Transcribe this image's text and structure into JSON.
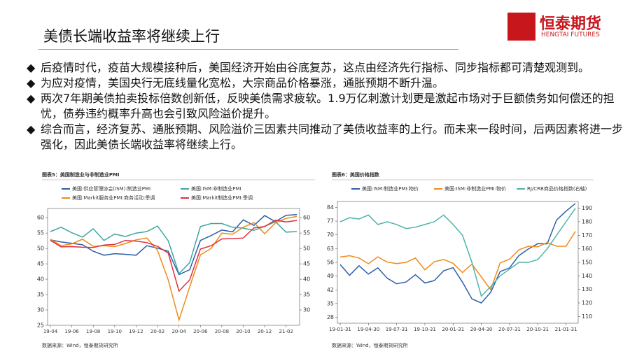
{
  "header": {
    "title": "美债长端收益率将继续上行",
    "logo_name": "恒泰期货",
    "logo_en": "HENGTAI FUTURES"
  },
  "bullets": [
    "后疫情时代，疫苗大规模接种后，美国经济开始由谷底复苏，这点由经济先行指标、同步指标都可清楚观测到。",
    "为应对疫情，美国央行无底线量化宽松，大宗商品价格暴涨，通胀预期不断升温。",
    "两次7年期美债拍卖投标倍数创新低，反映美债需求疲软。1.9万亿刺激计划更是激起市场对于巨额债务如何偿还的担忧，债券违约概率升高也会引致风险溢价提升。",
    "综合而言，经济复苏、通胀预期、风险溢价三因素共同推动了美债收益率的上行。而未来一段时间，后两因素将进一步强化，因此美债长端收益率将继续上行。"
  ],
  "chart_data": [
    {
      "type": "line",
      "title": "图表5：美国制造业与非制造业PMI",
      "source": "数据来源：Wind，恒泰期货研究所",
      "categories": [
        "19-04",
        null,
        "19-06",
        null,
        "19-08",
        null,
        "19-10",
        null,
        "19-12",
        null,
        "20-02",
        null,
        "20-04",
        null,
        "20-06",
        null,
        "20-08",
        null,
        "20-10",
        null,
        "20-12",
        null,
        "21-02",
        null
      ],
      "series": [
        {
          "name": "美国:供应管理协会(ISM):制造业PMI",
          "color": "#2e5fa6",
          "values": [
            52.8,
            52.1,
            51.7,
            51.2,
            49.1,
            47.8,
            48.3,
            48.1,
            47.8,
            50.9,
            50.1,
            49.1,
            41.5,
            43.1,
            52.6,
            54.2,
            56,
            55.4,
            59.3,
            57.5,
            60.7,
            58.7,
            60.8,
            61
          ]
        },
        {
          "name": "美国:ISM:非制造业PMI",
          "color": "#3fa5a5",
          "values": [
            55.5,
            56.9,
            55.1,
            53.7,
            56.4,
            52.6,
            54.7,
            53.9,
            55,
            55.5,
            57.3,
            52.5,
            41.8,
            45.4,
            57.1,
            58.1,
            58.1,
            56.9,
            56.6,
            55.9,
            57.2,
            58.7,
            55.3,
            55.5
          ]
        },
        {
          "name": "美国:Markit服务业PMI:商务活动:季调",
          "color": "#f08a1c",
          "axis": "y2",
          "values": [
            53,
            50.9,
            51.5,
            53,
            50.7,
            50.9,
            50.6,
            51.6,
            52.8,
            53.4,
            49.4,
            39.8,
            26.7,
            37.5,
            47.9,
            50,
            55,
            54.6,
            56.9,
            58.4,
            54.8,
            58.3,
            59.8,
            60.4
          ]
        },
        {
          "name": "美国:Markit制造业PMI:季调",
          "color": "#e0303a",
          "axis": "y2",
          "values": [
            52.6,
            50.5,
            50.6,
            50.4,
            50.3,
            51.1,
            51.3,
            52.6,
            52.4,
            51.9,
            50.7,
            48.5,
            36.1,
            39.8,
            49.8,
            50.9,
            53.1,
            53.2,
            53.4,
            56.7,
            57.1,
            59.2,
            58.6,
            59.1
          ]
        }
      ],
      "ylim": [
        25,
        63
      ],
      "yticks": [
        25,
        30,
        35,
        40,
        45,
        50,
        55,
        60
      ],
      "y2lim": [
        25,
        63
      ],
      "y2ticks": [
        30,
        35,
        40,
        45,
        50,
        55,
        60
      ]
    },
    {
      "type": "line",
      "title": "图表6：美国价格指数",
      "source": "数据来源：Wind，恒泰期货研究所",
      "categories": [
        "19-01-31",
        null,
        null,
        "19-04-30",
        null,
        null,
        "19-07-31",
        null,
        null,
        "19-10-31",
        null,
        null,
        "20-01-31",
        null,
        null,
        "20-04-30",
        null,
        null,
        "20-07-31",
        null,
        null,
        "20-10-31",
        null,
        null,
        "21-01-31",
        null
      ],
      "series": [
        {
          "name": "美国:ISM:制造业PMI:物价",
          "color": "#2e5fa6",
          "values": [
            54.9,
            49.4,
            54.3,
            50,
            53.2,
            47.9,
            45.1,
            46,
            49.7,
            45.5,
            46.7,
            51.7,
            53.3,
            45.9,
            37.4,
            35.3,
            40.8,
            51.3,
            53.2,
            59.5,
            62.8,
            65.5,
            65.4,
            77.6,
            82.1,
            86
          ]
        },
        {
          "name": "美国:ISM:非制造业PMI:物价",
          "color": "#f08a1c",
          "values": [
            58.7,
            59.4,
            58.2,
            55.3,
            58.8,
            56.1,
            55.4,
            56,
            58.2,
            52.2,
            56.3,
            57.5,
            55.5,
            50.8,
            55.1,
            48.6,
            42.1,
            55.7,
            57.6,
            62.4,
            64.2,
            63.9,
            66.1,
            64.2,
            64.2,
            71.8
          ]
        },
        {
          "name": "RJ/CRB商品价格指数(右轴)",
          "color": "#4fb3a9",
          "axis": "y2",
          "values": [
            180,
            183,
            182,
            185,
            178,
            180,
            178,
            175,
            176,
            178,
            180,
            185,
            178,
            170,
            150,
            125,
            132,
            140,
            145,
            150,
            150,
            152,
            160,
            170,
            180,
            190
          ]
        }
      ],
      "ylim": [
        25,
        87
      ],
      "yticks": [
        28,
        35,
        42,
        49,
        56,
        63,
        70,
        77,
        84
      ],
      "y2lim": [
        105,
        195
      ],
      "y2ticks": [
        110,
        120,
        130,
        140,
        150,
        160,
        170,
        180,
        190
      ]
    }
  ]
}
